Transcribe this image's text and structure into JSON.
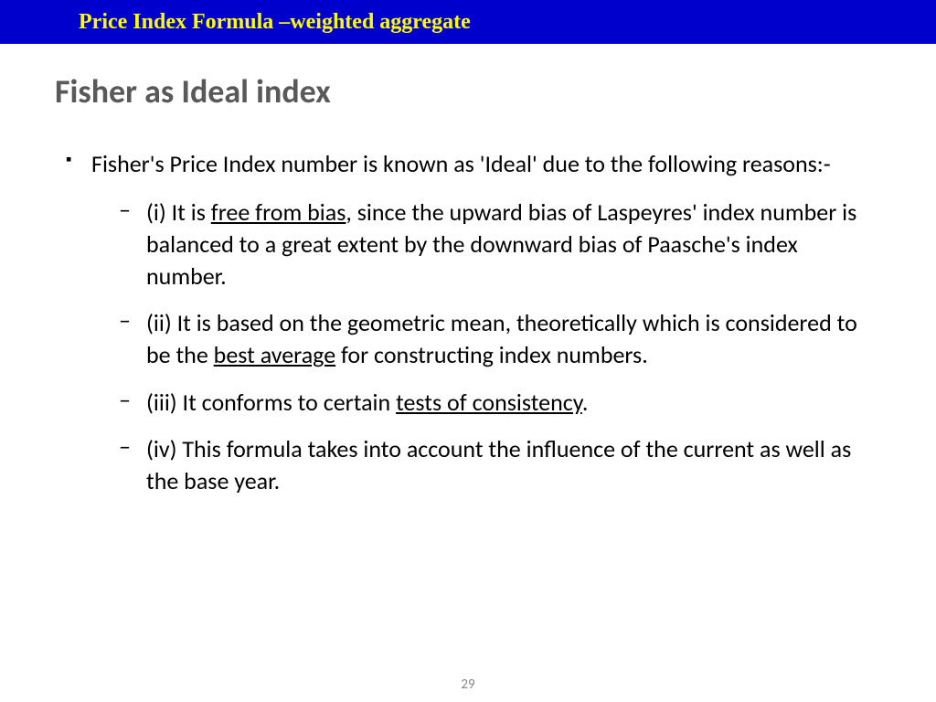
{
  "header": {
    "background_color": "#0000cc",
    "text_color": "#ffff00",
    "title": "Price Index Formula –weighted aggregate",
    "font_family": "Times New Roman",
    "font_size": 24,
    "font_weight": "bold"
  },
  "slide": {
    "title": "Fisher as Ideal index",
    "title_color": "#595959",
    "title_font_size": 36,
    "body_font_size": 26,
    "body_color": "#000000",
    "background_color": "#ffffff"
  },
  "content": {
    "intro": "Fisher's Price Index number is known as 'Ideal' due to the following reasons:-",
    "points": {
      "p1_prefix": "(i) It is ",
      "p1_ul": "free from bias",
      "p1_suffix": ", since the upward bias of Laspeyres' index number is balanced to a great extent by the downward bias of Paasche's index number.",
      "p2_prefix": "(ii) It is based on the geometric mean, theoretically which is considered to be the ",
      "p2_ul": "best average",
      "p2_suffix": " for constructing index numbers.",
      "p3_prefix": "(iii) It conforms to certain ",
      "p3_ul": "tests of consistency",
      "p3_suffix": ".",
      "p4": "(iv) This formula takes into account the influence of the current as well as the base year."
    }
  },
  "page_number": "29",
  "page_number_color": "#898989"
}
